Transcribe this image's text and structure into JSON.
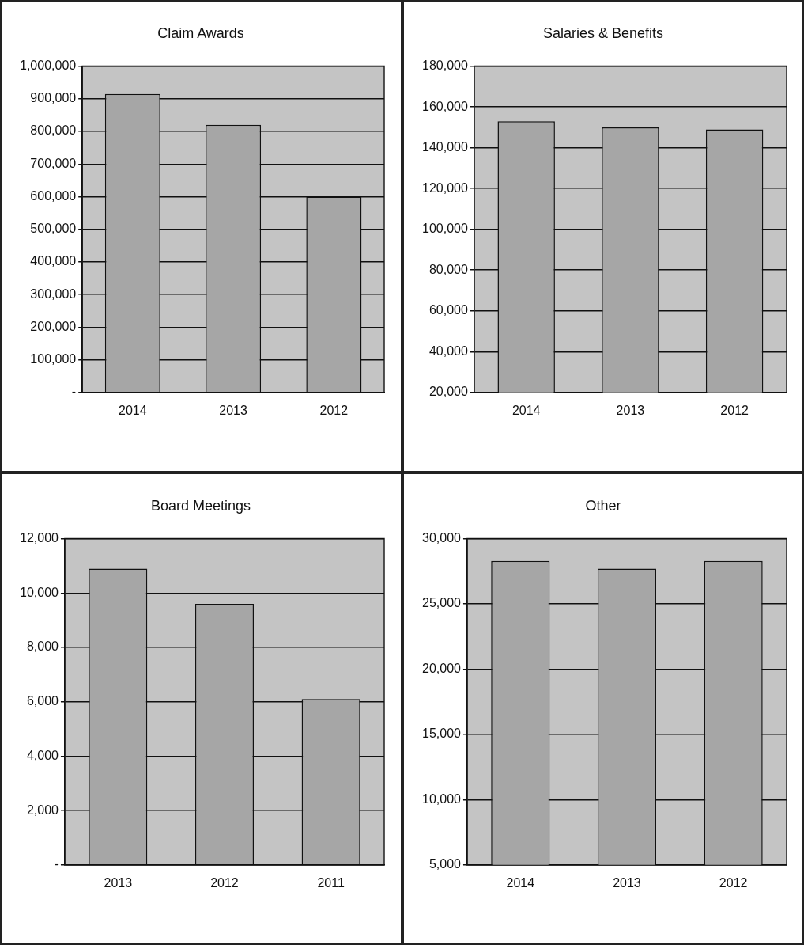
{
  "chart_data": [
    {
      "type": "bar",
      "title": "Claim Awards",
      "categories": [
        "2014",
        "2013",
        "2012"
      ],
      "values": [
        915000,
        820000,
        600000
      ],
      "color": "#a6a6a6",
      "ylim": [
        0,
        1000000
      ],
      "yticks": [
        {
          "value": 0,
          "label": "-"
        },
        {
          "value": 100000,
          "label": "100,000"
        },
        {
          "value": 200000,
          "label": "200,000"
        },
        {
          "value": 300000,
          "label": "300,000"
        },
        {
          "value": 400000,
          "label": "400,000"
        },
        {
          "value": 500000,
          "label": "500,000"
        },
        {
          "value": 600000,
          "label": "600,000"
        },
        {
          "value": 700000,
          "label": "700,000"
        },
        {
          "value": 800000,
          "label": "800,000"
        },
        {
          "value": 900000,
          "label": "900,000"
        },
        {
          "value": 1000000,
          "label": "1,000,000"
        }
      ],
      "grid": "y",
      "legend": false
    },
    {
      "type": "bar",
      "title": "Salaries & Benefits",
      "categories": [
        "2014",
        "2013",
        "2012"
      ],
      "values": [
        153000,
        150000,
        149000
      ],
      "color": "#a6a6a6",
      "ylim": [
        20000,
        180000
      ],
      "yticks": [
        {
          "value": 20000,
          "label": "20,000"
        },
        {
          "value": 40000,
          "label": "40,000"
        },
        {
          "value": 60000,
          "label": "60,000"
        },
        {
          "value": 80000,
          "label": "80,000"
        },
        {
          "value": 100000,
          "label": "100,000"
        },
        {
          "value": 120000,
          "label": "120,000"
        },
        {
          "value": 140000,
          "label": "140,000"
        },
        {
          "value": 160000,
          "label": "160,000"
        },
        {
          "value": 180000,
          "label": "180,000"
        }
      ],
      "grid": "y",
      "legend": false
    },
    {
      "type": "bar",
      "title": "Board Meetings",
      "categories": [
        "2013",
        "2012",
        "2011"
      ],
      "values": [
        10900,
        9600,
        6100
      ],
      "color": "#a6a6a6",
      "ylim": [
        0,
        12000
      ],
      "yticks": [
        {
          "value": 0,
          "label": "-"
        },
        {
          "value": 2000,
          "label": "2,000"
        },
        {
          "value": 4000,
          "label": "4,000"
        },
        {
          "value": 6000,
          "label": "6,000"
        },
        {
          "value": 8000,
          "label": "8,000"
        },
        {
          "value": 10000,
          "label": "10,000"
        },
        {
          "value": 12000,
          "label": "12,000"
        }
      ],
      "grid": "y",
      "legend": false
    },
    {
      "type": "bar",
      "title": "Other",
      "categories": [
        "2014",
        "2013",
        "2012"
      ],
      "values": [
        28300,
        27700,
        28300
      ],
      "color": "#a6a6a6",
      "ylim": [
        5000,
        30000
      ],
      "yticks": [
        {
          "value": 5000,
          "label": "5,000"
        },
        {
          "value": 10000,
          "label": "10,000"
        },
        {
          "value": 15000,
          "label": "15,000"
        },
        {
          "value": 20000,
          "label": "20,000"
        },
        {
          "value": 25000,
          "label": "25,000"
        },
        {
          "value": 30000,
          "label": "30,000"
        }
      ],
      "grid": "y",
      "legend": false
    }
  ]
}
